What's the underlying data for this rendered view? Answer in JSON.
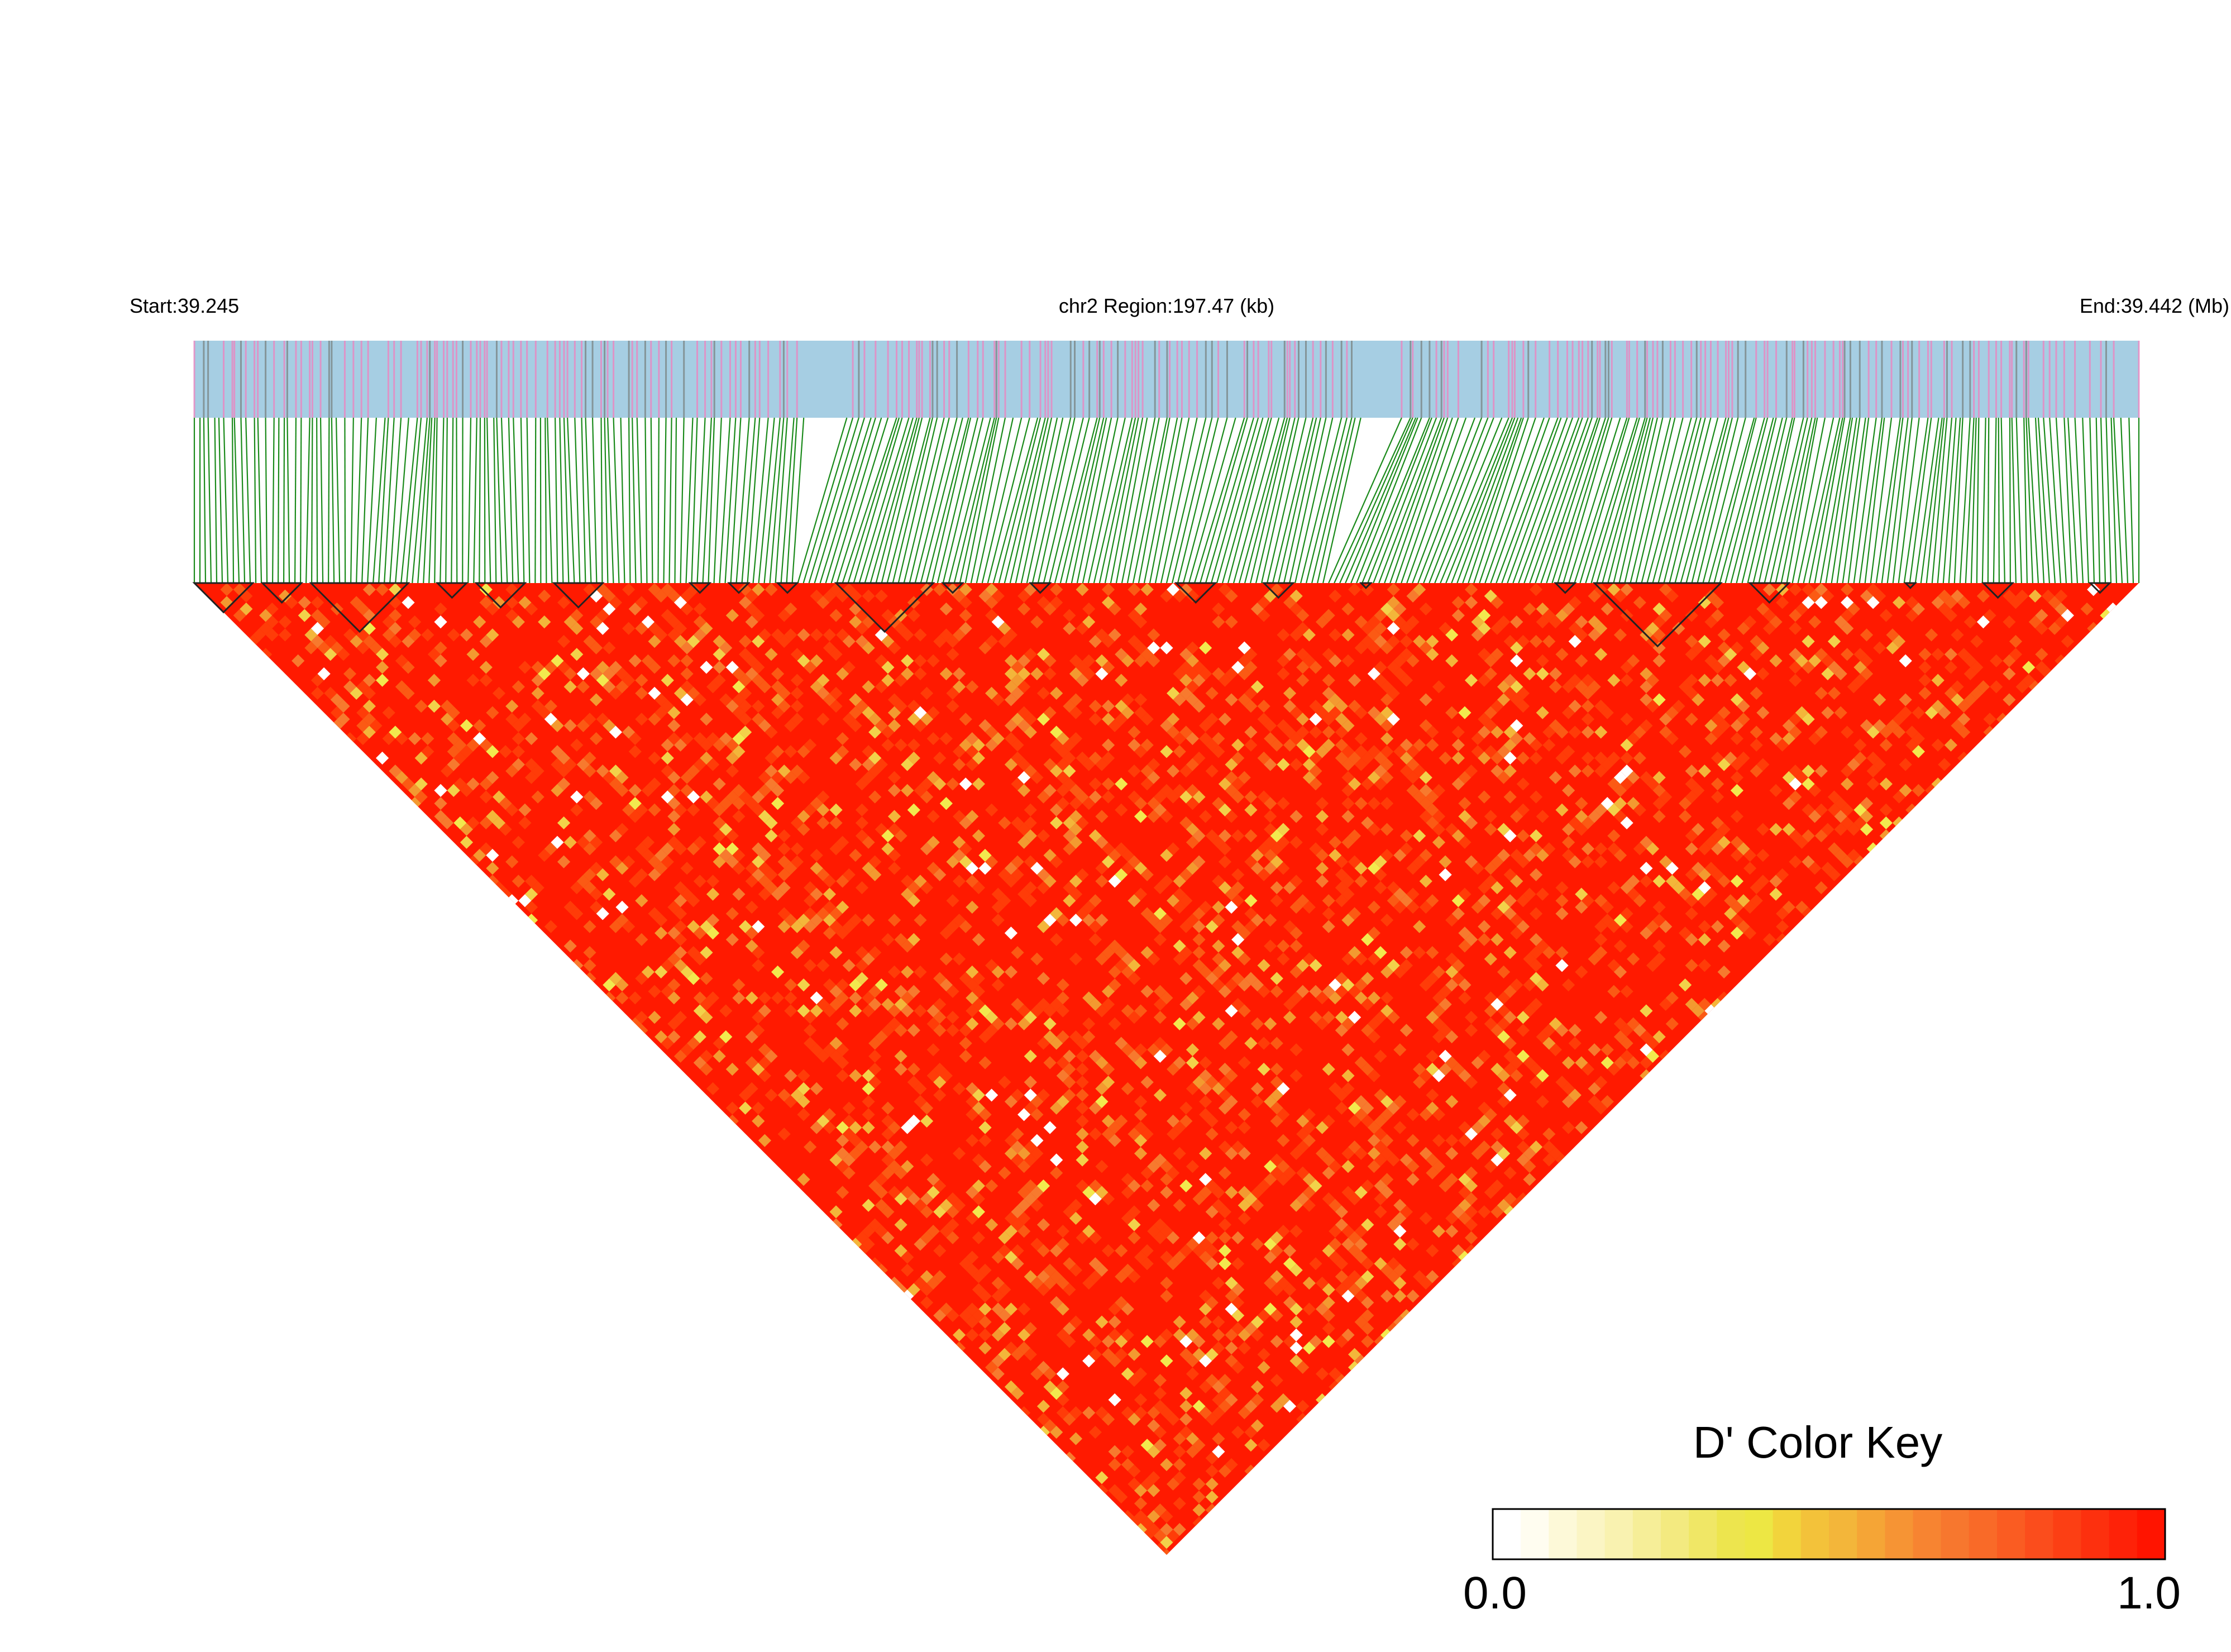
{
  "chart_data": {
    "type": "heatmap",
    "subtype": "LD triangle heatmap (LDheatmap)",
    "chromosome": "chr2",
    "header": {
      "start_label": "Start:39.245",
      "region_label": "chr2 Region:197.47 (kb)",
      "end_label": "End:39.442 (Mb)"
    },
    "region": {
      "start_mb": 39.245,
      "end_mb": 39.442,
      "length_kb": 197.47
    },
    "metric": "D'",
    "value_range": [
      0.0,
      1.0
    ],
    "dominant_value": "near 1.0 (red) across most SNP pairs",
    "legend": {
      "title": "D' Color Key",
      "min_label": "0.0",
      "max_label": "1.0",
      "placement": "bottom-right"
    },
    "colors": {
      "gene_bar_background": "#a6cee3",
      "gene_bar_stripe_pink": "#e78ac3",
      "gene_bar_stripe_gray": "#7f8c8d",
      "snp_connector_lines": "#1a8a1a",
      "heatmap_high": "#ff1a00",
      "heatmap_mid": "#f7a12a",
      "heatmap_low_yellow": "#f2e94e",
      "heatmap_zero": "#ffffff",
      "block_outline": "#222222"
    }
  }
}
